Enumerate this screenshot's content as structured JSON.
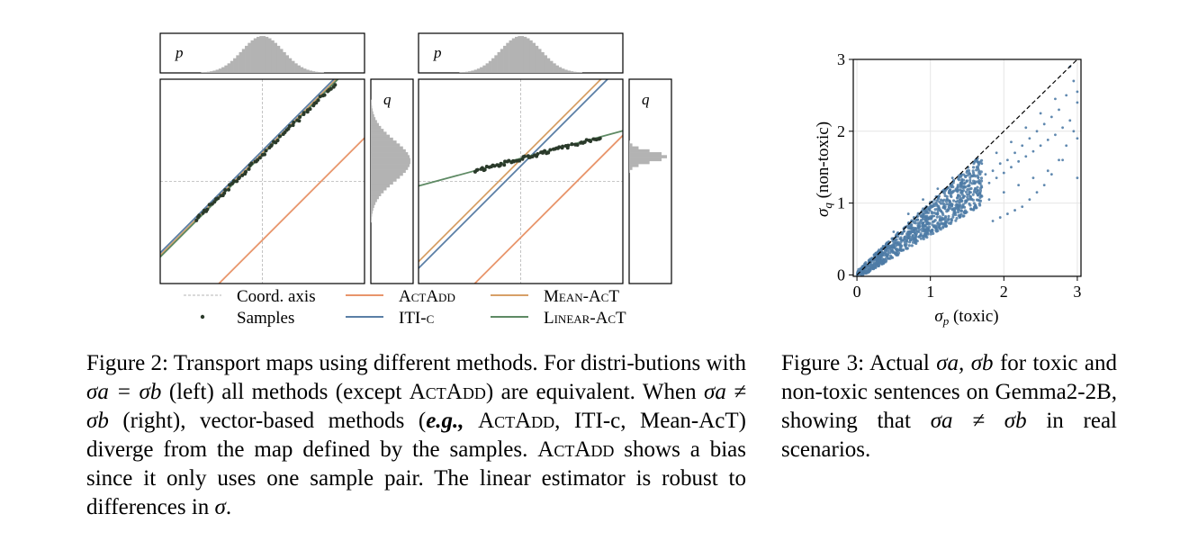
{
  "figure2": {
    "panels": [
      {
        "name": "left",
        "top_label": "p",
        "side_label": "q",
        "samples": {
          "from": [
            -1.3,
            -0.75
          ],
          "to": [
            1.42,
            1.9
          ],
          "count": 70
        },
        "lines": [
          {
            "method": "Coord. axis",
            "shape": "cross"
          },
          {
            "method": "ActAdd",
            "slope": 1.0,
            "intercept": -1.15
          },
          {
            "method": "ITI-c",
            "slope": 1.0,
            "intercept": 0.6
          },
          {
            "method": "Mean-AcT",
            "slope": 1.0,
            "intercept": 0.55
          },
          {
            "method": "Linear-AcT",
            "slope": 1.0,
            "intercept": 0.52
          }
        ]
      },
      {
        "name": "right",
        "top_label": "p",
        "side_label": "q",
        "samples": {
          "from": [
            -0.9,
            0.2
          ],
          "to": [
            1.55,
            0.85
          ],
          "count": 70
        },
        "lines": [
          {
            "method": "Coord. axis",
            "shape": "cross"
          },
          {
            "method": "ActAdd",
            "slope": 1.0,
            "intercept": -1.1
          },
          {
            "method": "ITI-c",
            "slope": 1.0,
            "intercept": 0.3
          },
          {
            "method": "Mean-AcT",
            "slope": 1.0,
            "intercept": 0.43
          },
          {
            "method": "Linear-AcT",
            "slope": 0.27,
            "intercept": 0.45
          }
        ]
      }
    ],
    "legend": {
      "coord_axis": "Coord. axis",
      "samples": "Samples",
      "actadd": "ActAdd",
      "iti": "ITI-c",
      "mean_act": "Mean-AcT",
      "linear_act": "Linear-AcT"
    },
    "colors": {
      "actadd": "#e8956b",
      "iti": "#5b7fa6",
      "mean_act": "#d7a067",
      "linear_act": "#5e8a64",
      "samples": "#2a3a2a",
      "coord_axis": "#b5b5b5",
      "hist": "#b3b3b3"
    }
  },
  "chart_data": {
    "type": "scatter",
    "xlabel": "σp (toxic)",
    "ylabel": "σq (non-toxic)",
    "xlim": [
      -0.05,
      3.05
    ],
    "ylim": [
      -0.02,
      3.0
    ],
    "xticks": [
      "0",
      "1",
      "2",
      "3"
    ],
    "yticks": [
      "0",
      "1",
      "2",
      "3"
    ],
    "grid": true,
    "reference_line": {
      "style": "dashed",
      "x": [
        0,
        3
      ],
      "y": [
        0,
        3
      ]
    },
    "series": [
      {
        "color": "#4e7ba6",
        "points": [
          [
            0.05,
            0.04
          ],
          [
            0.1,
            0.09
          ],
          [
            0.15,
            0.13
          ],
          [
            0.2,
            0.18
          ],
          [
            0.25,
            0.22
          ],
          [
            0.3,
            0.26
          ],
          [
            0.35,
            0.3
          ],
          [
            0.4,
            0.34
          ],
          [
            0.45,
            0.38
          ],
          [
            0.5,
            0.41
          ],
          [
            0.55,
            0.45
          ],
          [
            0.6,
            0.5
          ],
          [
            0.65,
            0.53
          ],
          [
            0.7,
            0.57
          ],
          [
            0.75,
            0.6
          ],
          [
            0.8,
            0.64
          ],
          [
            0.85,
            0.68
          ],
          [
            0.9,
            0.72
          ],
          [
            0.95,
            0.75
          ],
          [
            1.0,
            0.78
          ],
          [
            1.05,
            0.82
          ],
          [
            1.1,
            0.85
          ],
          [
            1.15,
            0.88
          ],
          [
            1.2,
            0.92
          ],
          [
            1.25,
            0.95
          ],
          [
            1.3,
            0.98
          ],
          [
            1.35,
            1.02
          ],
          [
            1.4,
            1.05
          ],
          [
            1.45,
            1.08
          ],
          [
            1.5,
            1.12
          ],
          [
            1.55,
            1.15
          ],
          [
            1.6,
            1.18
          ],
          [
            1.7,
            1.22
          ],
          [
            1.8,
            1.28
          ],
          [
            1.9,
            1.35
          ],
          [
            2.0,
            1.42
          ],
          [
            2.1,
            1.5
          ],
          [
            2.2,
            1.58
          ],
          [
            2.3,
            1.65
          ],
          [
            2.4,
            1.72
          ],
          [
            2.5,
            1.8
          ],
          [
            2.6,
            1.88
          ],
          [
            2.7,
            1.95
          ],
          [
            2.8,
            2.05
          ],
          [
            2.9,
            2.15
          ],
          [
            3.0,
            2.4
          ],
          [
            2.95,
            2.7
          ],
          [
            2.85,
            2.5
          ],
          [
            2.75,
            2.3
          ],
          [
            2.65,
            2.2
          ],
          [
            2.55,
            2.1
          ],
          [
            2.45,
            2.0
          ],
          [
            2.35,
            1.9
          ],
          [
            2.25,
            1.8
          ],
          [
            2.15,
            1.7
          ],
          [
            2.05,
            1.6
          ],
          [
            1.95,
            1.55
          ],
          [
            1.85,
            1.45
          ],
          [
            1.75,
            1.4
          ],
          [
            1.65,
            1.35
          ],
          [
            0.6,
            0.35
          ],
          [
            0.8,
            0.5
          ],
          [
            1.0,
            0.6
          ],
          [
            1.2,
            0.7
          ],
          [
            1.4,
            0.8
          ],
          [
            1.6,
            0.95
          ],
          [
            1.8,
            1.05
          ],
          [
            2.0,
            1.15
          ],
          [
            2.2,
            1.25
          ],
          [
            2.4,
            1.35
          ],
          [
            2.6,
            1.45
          ],
          [
            2.8,
            1.6
          ],
          [
            3.0,
            1.9
          ],
          [
            0.3,
            0.35
          ],
          [
            0.5,
            0.6
          ],
          [
            0.7,
            0.85
          ],
          [
            0.9,
            1.05
          ],
          [
            1.1,
            1.2
          ],
          [
            1.3,
            1.35
          ],
          [
            1.5,
            1.45
          ],
          [
            1.7,
            1.55
          ],
          [
            2.9,
            2.9
          ],
          [
            3.0,
            2.55
          ],
          [
            2.7,
            2.45
          ],
          [
            2.5,
            2.25
          ],
          [
            2.3,
            2.05
          ],
          [
            2.1,
            1.85
          ],
          [
            1.9,
            1.7
          ],
          [
            3.0,
            1.35
          ],
          [
            2.95,
            2.0
          ],
          [
            2.85,
            1.8
          ],
          [
            2.75,
            1.6
          ],
          [
            2.65,
            1.4
          ],
          [
            2.55,
            1.25
          ],
          [
            2.45,
            1.15
          ],
          [
            2.35,
            1.05
          ],
          [
            2.25,
            0.95
          ],
          [
            2.15,
            0.9
          ],
          [
            2.05,
            0.85
          ],
          [
            1.95,
            0.8
          ],
          [
            1.85,
            0.75
          ]
        ]
      }
    ]
  },
  "captions": {
    "fig2": {
      "s1": "Figure 2: Transport maps using different methods. For distri-butions with ",
      "s2": "σa = σb",
      "s3": " (left) all methods (except ",
      "s4": "ActAdd",
      "s5": ") are equivalent. When ",
      "s6": "σa ≠ σb",
      "s7": " (right), vector-based methods (",
      "s8": "e.g.,",
      "s9": " ",
      "s10": "ActAdd",
      "s11": ", ITI-c, Mean-AcT) diverge from the map defined by the samples. ",
      "s12": "ActAdd",
      "s13": " shows a bias since it only uses one sample pair. The linear estimator is robust to differences in ",
      "s14": "σ",
      "s15": "."
    },
    "fig3": {
      "s1": "Figure 3: Actual ",
      "s2": "σa, σb",
      "s3": " for toxic and non-toxic sentences on Gemma2-2B, showing that ",
      "s4": "σa ≠ σb",
      "s5": " in real scenarios."
    }
  }
}
